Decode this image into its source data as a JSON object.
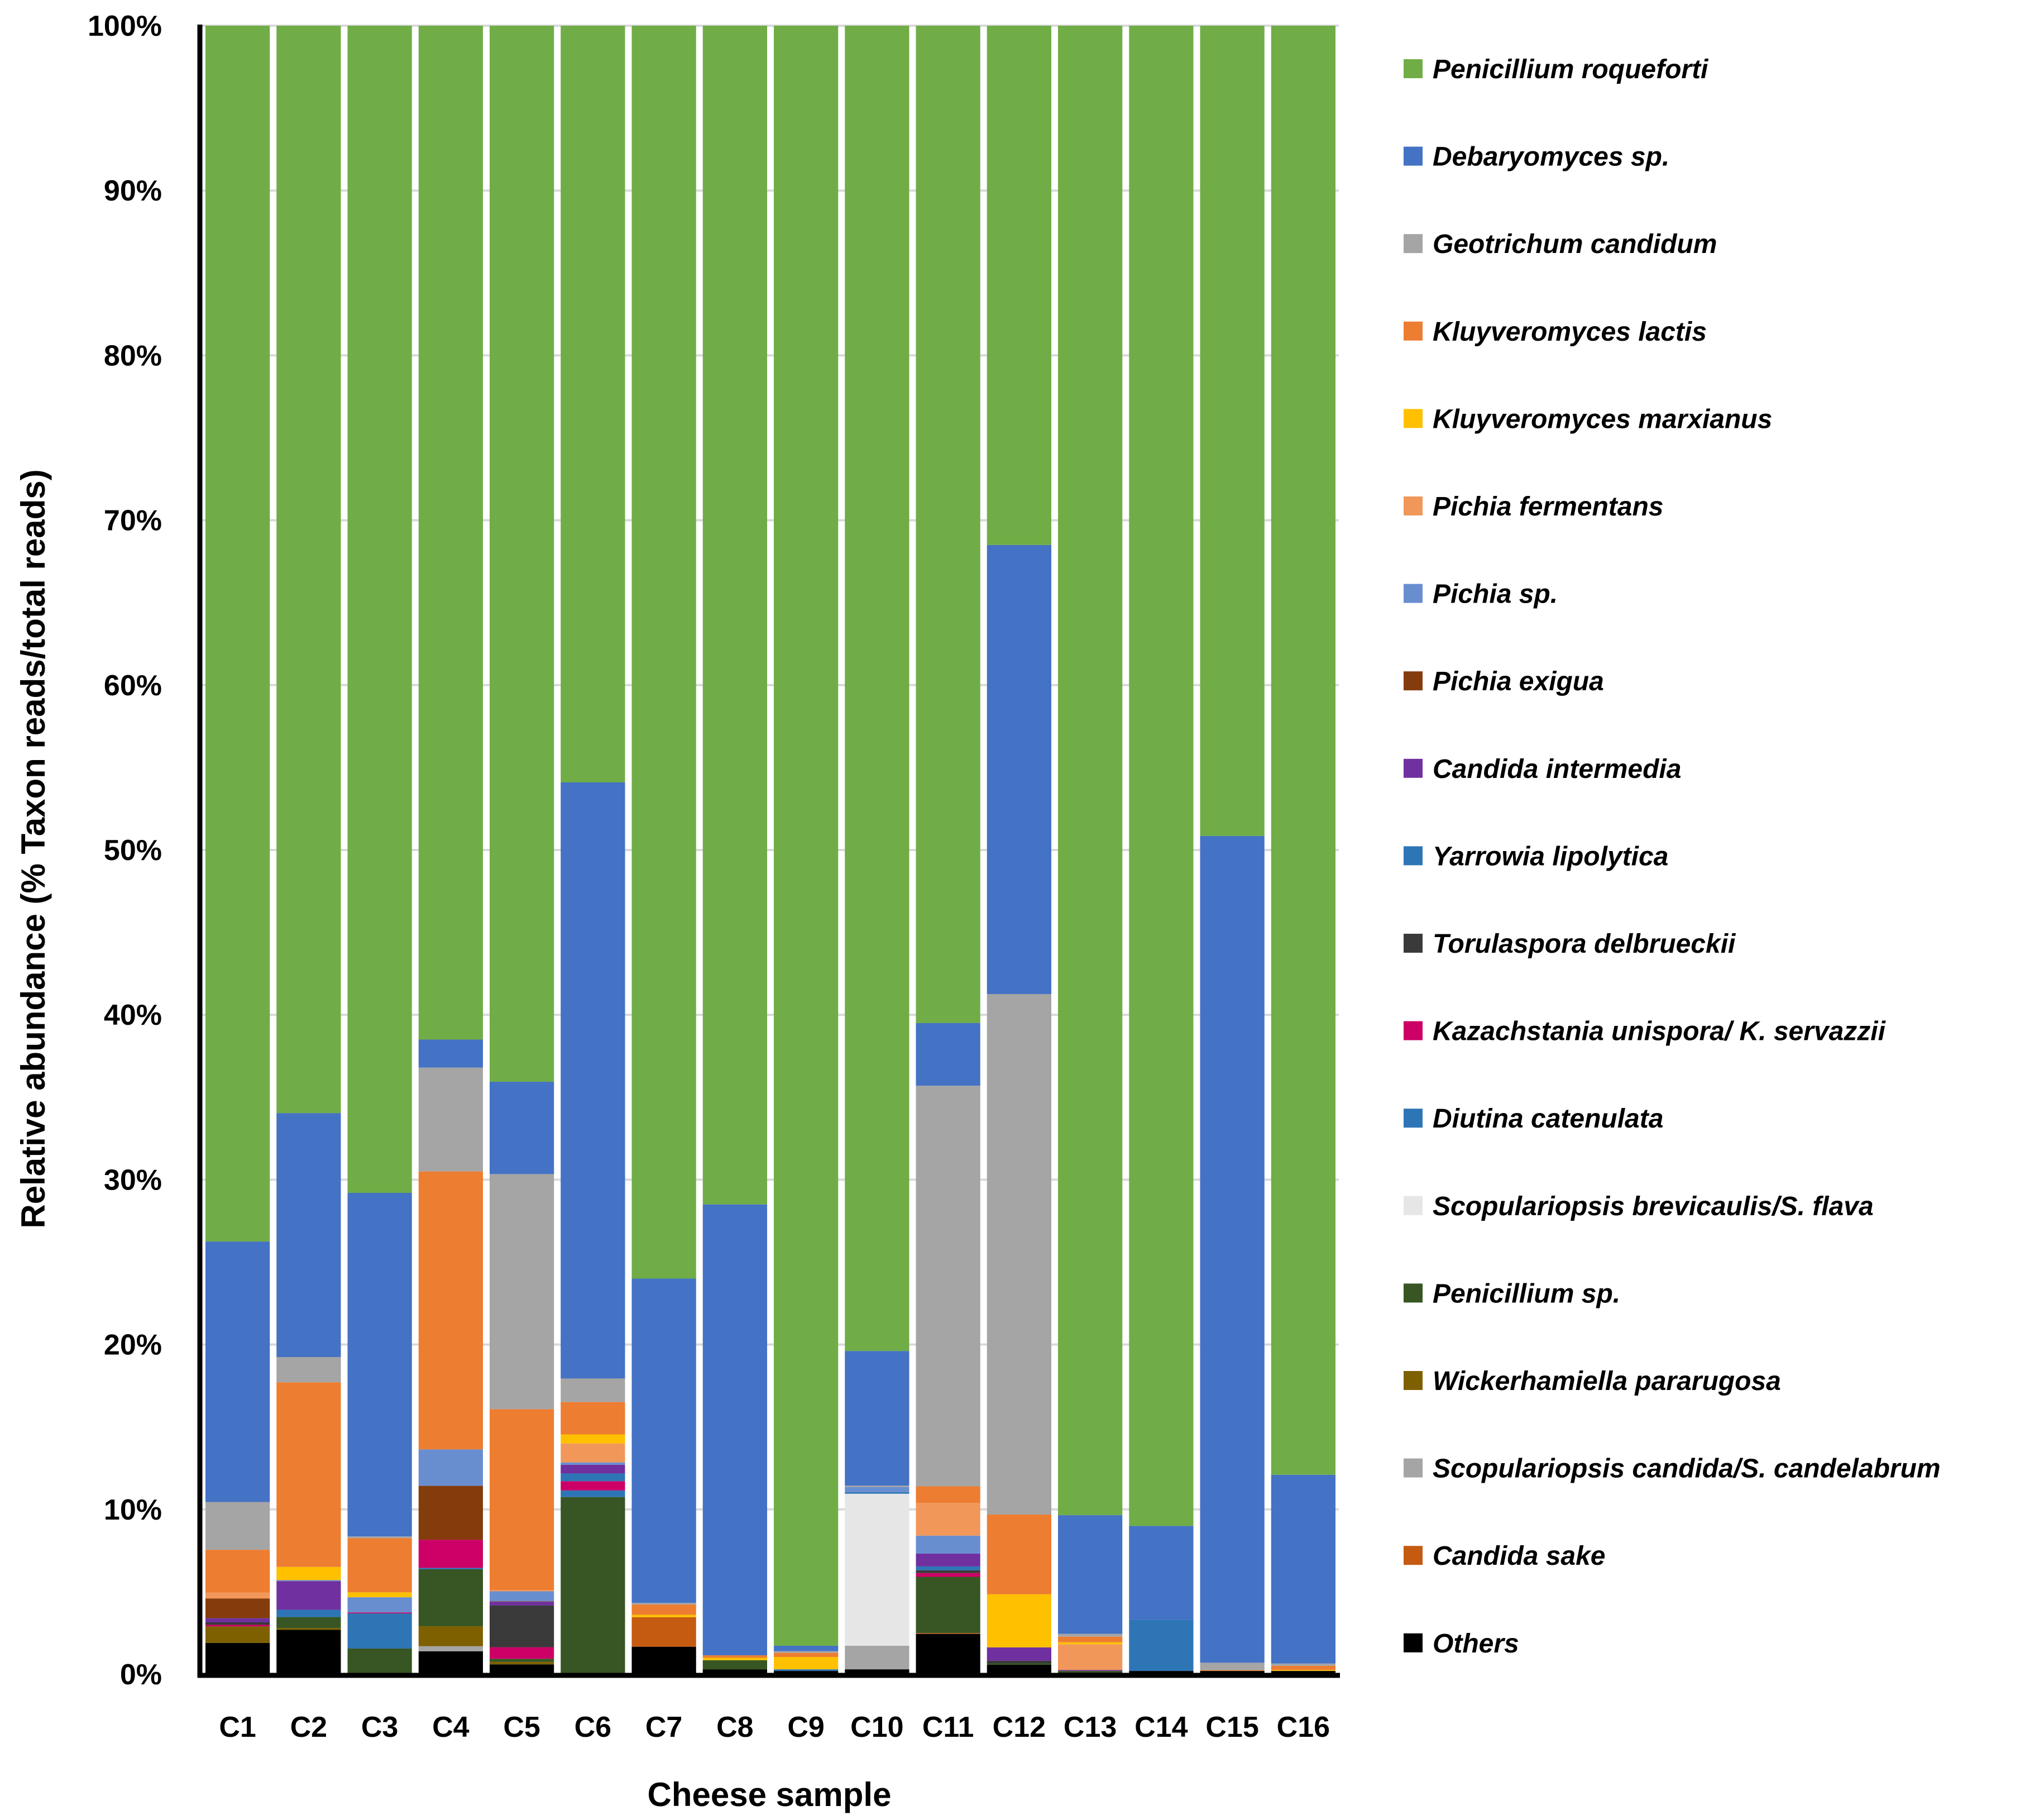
{
  "chart_data": {
    "type": "bar",
    "stacked": true,
    "normalized": true,
    "title": "",
    "xlabel": "Cheese sample",
    "ylabel": "Relative abundance (% Taxon reads/total reads)",
    "ylim": [
      0,
      100
    ],
    "yticks": [
      "0%",
      "10%",
      "20%",
      "30%",
      "40%",
      "50%",
      "60%",
      "70%",
      "80%",
      "90%",
      "100%"
    ],
    "grid": true,
    "legend_position": "right",
    "categories": [
      "C1",
      "C2",
      "C3",
      "C4",
      "C5",
      "C6",
      "C7",
      "C8",
      "C9",
      "C10",
      "C11",
      "C12",
      "C13",
      "C14",
      "C15",
      "C16"
    ],
    "series": [
      {
        "name": "Others",
        "color": "#000000",
        "values": [
          1.9,
          2.7,
          0,
          1.39,
          0.6,
          0,
          1.67,
          0.3,
          0.2,
          0.3,
          2.45,
          0.58,
          0.1,
          0.2,
          0.2,
          0.2
        ]
      },
      {
        "name": "Candida sake",
        "color": "#C55A11",
        "values": [
          0,
          0,
          0,
          0,
          0,
          0,
          1.79,
          0,
          0,
          0,
          0.05,
          0,
          0,
          0,
          0,
          0
        ]
      },
      {
        "name": "Scopulariopsis candida/S. candelabrum",
        "color": "#A5A5A5",
        "values": [
          0,
          0,
          0,
          0.31,
          0,
          0,
          0,
          0,
          0,
          1.43,
          0,
          0,
          0,
          0,
          0,
          0
        ]
      },
      {
        "name": "Wickerhamiella pararugosa",
        "color": "#7F6000",
        "values": [
          1.0,
          0.1,
          0,
          1.21,
          0.15,
          0,
          0,
          0,
          0,
          0,
          0,
          0,
          0,
          0,
          0,
          0
        ]
      },
      {
        "name": "Penicillium sp.",
        "color": "#375623",
        "values": [
          0,
          0.67,
          1.56,
          3.46,
          0.19,
          10.75,
          0,
          0.55,
          0,
          0,
          3.41,
          0.08,
          0.1,
          0,
          0,
          0
        ]
      },
      {
        "name": "Scopulariopsis brevicaulis/S. flava",
        "color": "#E6E6E6",
        "values": [
          0,
          0,
          0,
          0,
          0,
          0,
          0,
          0,
          0,
          9.22,
          0,
          0,
          0,
          0,
          0,
          0
        ]
      },
      {
        "name": "Diutina catenulata",
        "color": "#2E75B6",
        "values": [
          0,
          0,
          2.13,
          0.08,
          0,
          0.4,
          0,
          0,
          0.1,
          0.1,
          0,
          0,
          0,
          3.1,
          0,
          0
        ]
      },
      {
        "name": "Kazachstania unispora/ K. servazzii",
        "color": "#CC0066",
        "values": [
          0.1,
          0,
          0.06,
          1.71,
          0.7,
          0.56,
          0,
          0,
          0,
          0,
          0.23,
          0,
          0,
          0,
          0,
          0
        ]
      },
      {
        "name": "Torulaspora delbrueckii",
        "color": "#3A3A3A",
        "values": [
          0.15,
          0,
          0,
          0,
          2.54,
          0,
          0,
          0,
          0,
          0,
          0.17,
          0.16,
          0,
          0,
          0,
          0
        ]
      },
      {
        "name": "Yarrowia lipolytica",
        "color": "#2E75B6",
        "values": [
          0,
          0.44,
          0,
          0,
          0,
          0.47,
          0,
          0,
          0,
          0,
          0.23,
          0,
          0,
          0,
          0,
          0
        ]
      },
      {
        "name": "Candida intermedia",
        "color": "#7030A0",
        "values": [
          0.25,
          1.74,
          0,
          0,
          0.22,
          0.53,
          0,
          0,
          0,
          0,
          0.78,
          0.81,
          0.06,
          0,
          0,
          0
        ]
      },
      {
        "name": "Pichia exigua",
        "color": "#843C0C",
        "values": [
          1.2,
          0,
          0,
          3.27,
          0.03,
          0,
          0,
          0,
          0,
          0,
          0,
          0,
          0,
          0,
          0,
          0
        ]
      },
      {
        "name": "Pichia sp.",
        "color": "#698ED0",
        "values": [
          0,
          0.06,
          0.92,
          2.21,
          0.6,
          0.14,
          0,
          0,
          0,
          0.31,
          1.09,
          0,
          0,
          0,
          0,
          0
        ]
      },
      {
        "name": "Pichia fermentans",
        "color": "#F1975A",
        "values": [
          0.35,
          0,
          0,
          0,
          0.08,
          1.15,
          0,
          0,
          0,
          0,
          1.99,
          0,
          1.56,
          0,
          0,
          0
        ]
      },
      {
        "name": "Kluyveromyces marxianus",
        "color": "#FFC000",
        "values": [
          0,
          0.8,
          0.3,
          0,
          0,
          0.55,
          0.15,
          0.15,
          0.75,
          0,
          0,
          3.22,
          0.12,
          0,
          0,
          0.06
        ]
      },
      {
        "name": "Kluyveromyces lactis",
        "color": "#ED7D31",
        "values": [
          2.6,
          11.2,
          3.29,
          16.86,
          10.97,
          1.96,
          0.62,
          0.15,
          0.25,
          0,
          1.0,
          4.84,
          0.34,
          0,
          0.05,
          0.25
        ]
      },
      {
        "name": "Geotrichum candidum",
        "color": "#A5A5A5",
        "values": [
          2.9,
          1.53,
          0.1,
          6.3,
          14.26,
          1.43,
          0.1,
          0,
          0.1,
          0.08,
          24.3,
          31.57,
          0.17,
          0,
          0.45,
          0.14
        ]
      },
      {
        "name": "Debaryomyces sp.",
        "color": "#4472C4",
        "values": [
          15.8,
          14.8,
          20.84,
          1.7,
          5.6,
          36.16,
          19.67,
          27.35,
          0.33,
          8.17,
          3.8,
          27.24,
          7.2,
          5.7,
          50.15,
          11.45
        ]
      },
      {
        "name": "Penicillium roqueforti",
        "color": "#70AD47",
        "values": [
          73.75,
          65.96,
          70.8,
          61.5,
          64.06,
          45.9,
          76.0,
          71.5,
          98.27,
          80.39,
          60.5,
          31.5,
          90.35,
          91.0,
          49.15,
          87.9
        ]
      }
    ]
  }
}
